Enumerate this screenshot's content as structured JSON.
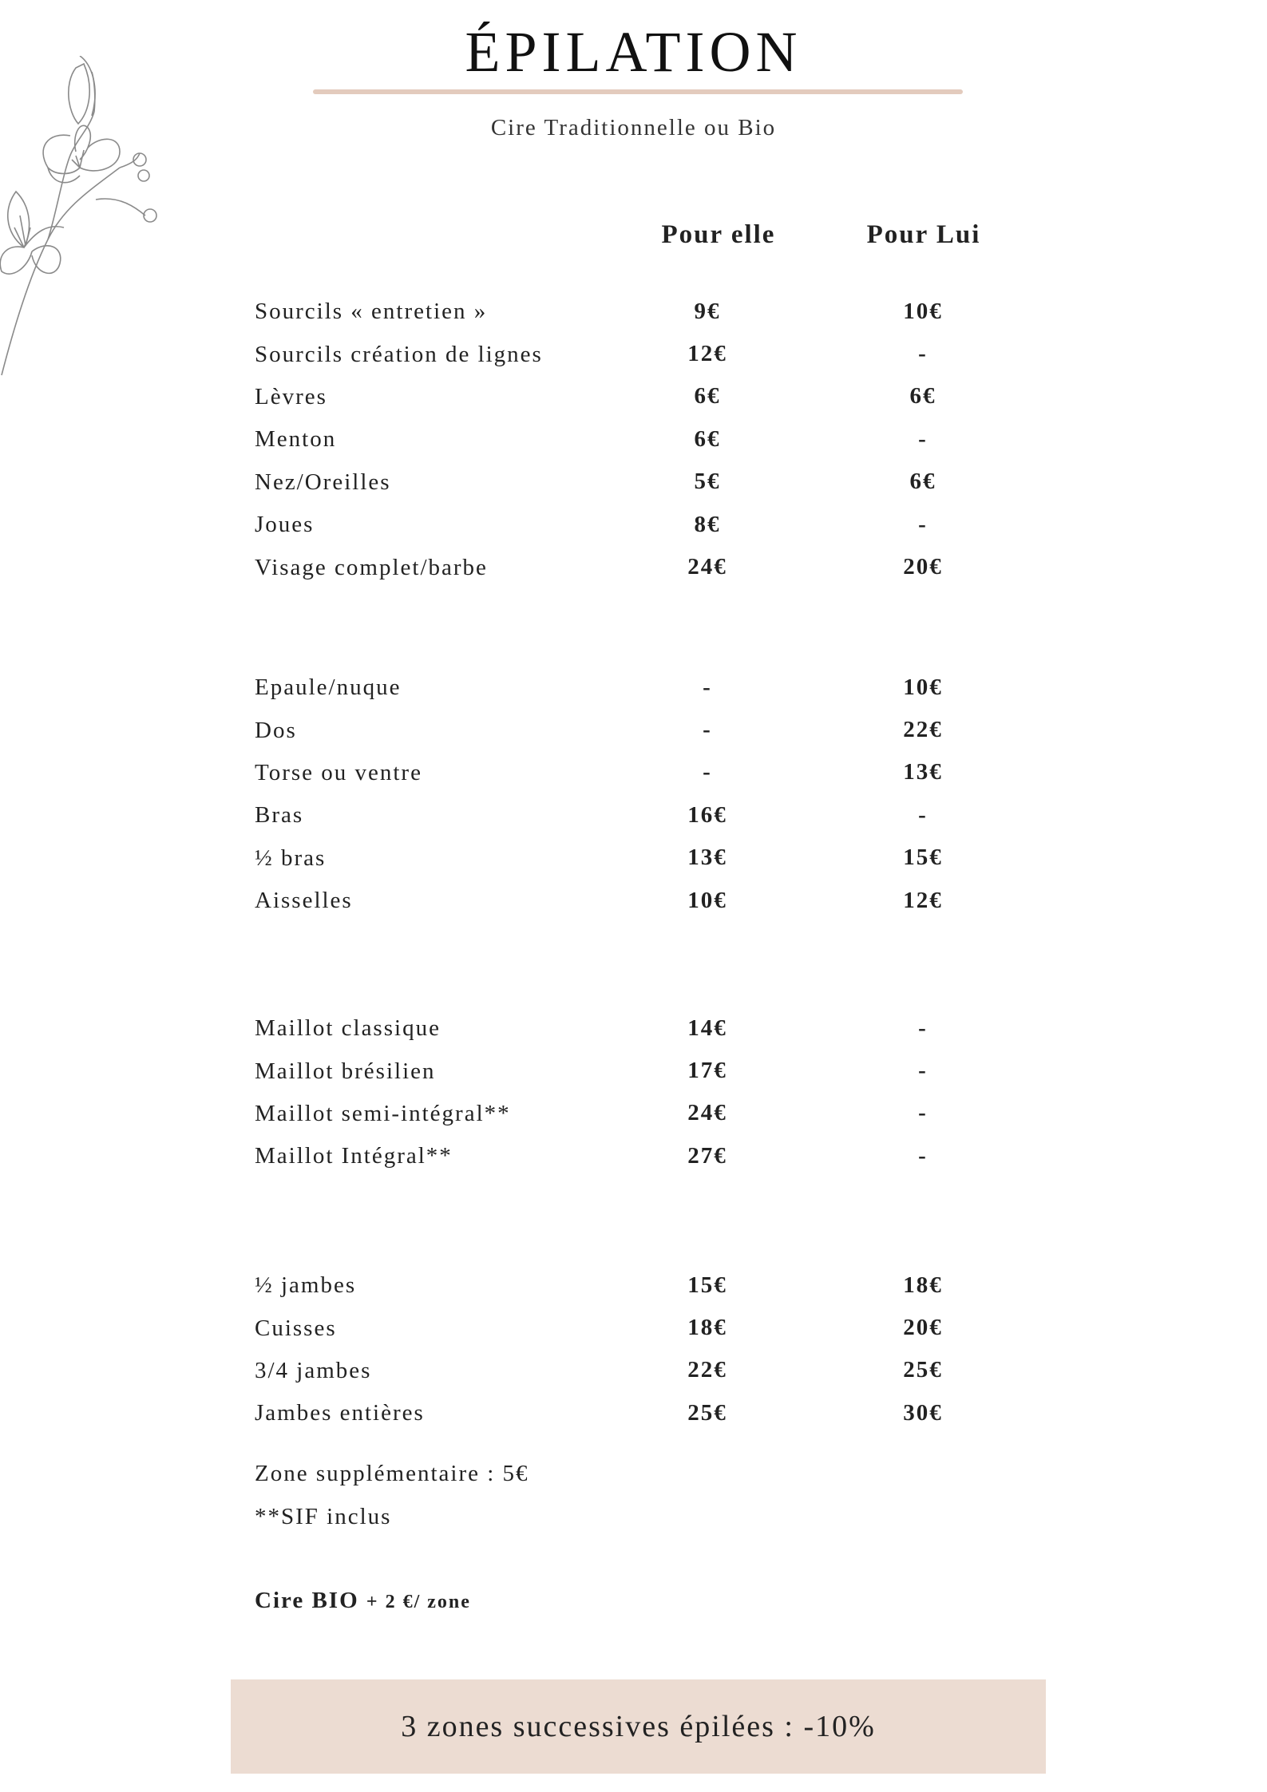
{
  "title": "ÉPILATION",
  "subtitle": "Cire Traditionnelle ou Bio",
  "columns": {
    "women": "Pour elle",
    "men": "Pour Lui"
  },
  "groups": [
    {
      "rows": [
        {
          "label": "Sourcils « entretien »",
          "women": "9€",
          "men": "10€"
        },
        {
          "label": "Sourcils création de lignes",
          "women": "12€",
          "men": "-"
        },
        {
          "label": "Lèvres",
          "women": "6€",
          "men": "6€"
        },
        {
          "label": "Menton",
          "women": "6€",
          "men": "-"
        },
        {
          "label": "Nez/Oreilles",
          "women": "5€",
          "men": "6€"
        },
        {
          "label": "Joues",
          "women": "8€",
          "men": "-"
        },
        {
          "label": "Visage complet/barbe",
          "women": "24€",
          "men": "20€"
        }
      ]
    },
    {
      "rows": [
        {
          "label": "Epaule/nuque",
          "women": "-",
          "men": "10€"
        },
        {
          "label": "Dos",
          "women": "-",
          "men": "22€"
        },
        {
          "label": "Torse ou ventre",
          "women": "-",
          "men": "13€"
        },
        {
          "label": "Bras",
          "women": "16€",
          "men": "-"
        },
        {
          "label": "½ bras",
          "women": "13€",
          "men": "15€"
        },
        {
          "label": "Aisselles",
          "women": "10€",
          "men": "12€"
        }
      ]
    },
    {
      "rows": [
        {
          "label": "Maillot classique",
          "women": "14€",
          "men": "-"
        },
        {
          "label": "Maillot brésilien",
          "women": "17€",
          "men": "-"
        },
        {
          "label": "Maillot semi-intégral**",
          "women": "24€",
          "men": "-"
        },
        {
          "label": "Maillot Intégral**",
          "women": "27€",
          "men": "-"
        }
      ]
    },
    {
      "rows": [
        {
          "label": "½ jambes",
          "women": "15€",
          "men": "18€"
        },
        {
          "label": "Cuisses",
          "women": "18€",
          "men": "20€"
        },
        {
          "label": "3/4 jambes",
          "women": "22€",
          "men": "25€"
        },
        {
          "label": "Jambes entières",
          "women": "25€",
          "men": "30€"
        }
      ]
    }
  ],
  "notes": {
    "extra_zone": "Zone supplémentaire : 5€",
    "sif": "**SIF inclus",
    "bio_label": "Cire BIO",
    "bio_price": "+ 2 €/ zone"
  },
  "promo": "3 zones successives épilées : -10%",
  "colors": {
    "accent_rule": "#e3cbbd",
    "promo_bg": "#ecdcd2",
    "flower_stroke": "#8a8a8a"
  },
  "decoration": "flower-branch-illustration"
}
